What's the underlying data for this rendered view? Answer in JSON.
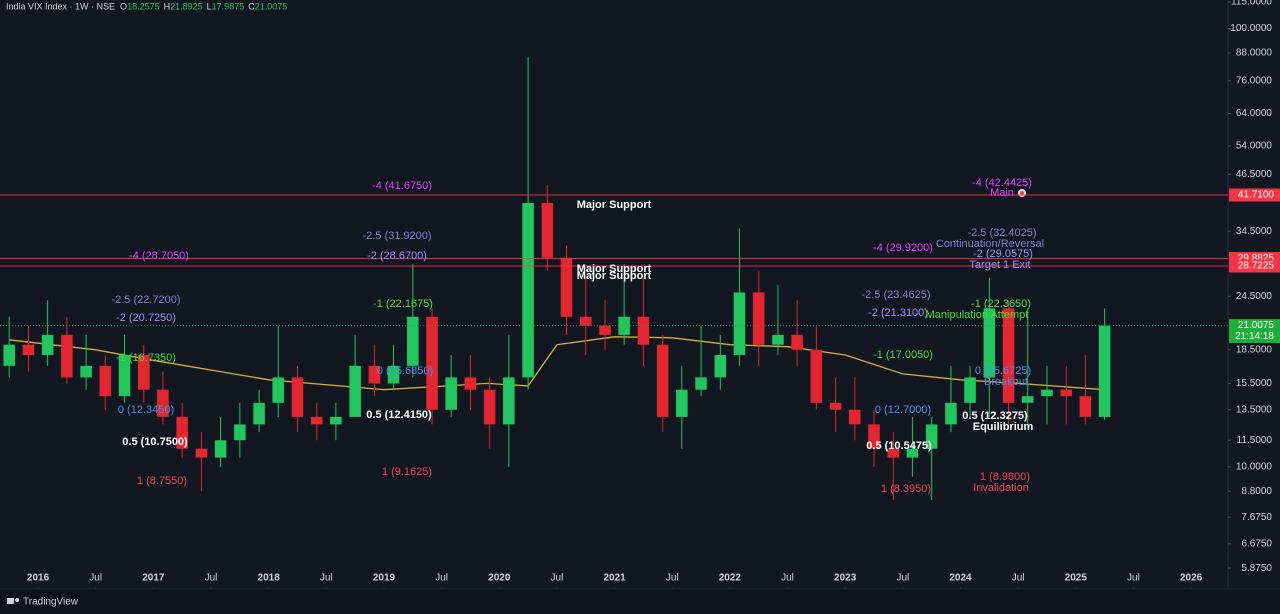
{
  "chart_data": {
    "type": "candlestick",
    "title": "India VIX Index · 1W · NSE",
    "ohlc": [
      {
        "label": "O",
        "value": 18.2575
      },
      {
        "label": "H",
        "value": 21.8925
      },
      {
        "label": "L",
        "value": 17.9875
      },
      {
        "label": "C",
        "value": 21.0075
      }
    ],
    "log_scale": true,
    "up_color": "#22c55e",
    "down_color": "#e3262f",
    "xlim": [
      2015.67,
      2026.32
    ],
    "xticks": [
      2016,
      {
        "value": 2016.5,
        "label": "Jul"
      },
      2017,
      {
        "value": 2017.5,
        "label": "Jul"
      },
      2018,
      {
        "value": 2018.5,
        "label": "Jul"
      },
      2019,
      {
        "value": 2019.5,
        "label": "Jul"
      },
      2020,
      {
        "value": 2020.5,
        "label": "Jul"
      },
      2021,
      {
        "value": 2021.5,
        "label": "Jul"
      },
      2022,
      {
        "value": 2022.5,
        "label": "Jul"
      },
      2023,
      {
        "value": 2023.5,
        "label": "Jul"
      },
      2024,
      {
        "value": 2024.5,
        "label": "Jul"
      },
      2025,
      {
        "value": 2025.5,
        "label": "Jul"
      },
      2026
    ],
    "ylim": [
      5.32,
      116.2
    ],
    "yticks": [
      {
        "value": 115,
        "label": "115.0000"
      },
      {
        "value": 100,
        "label": "100.0000"
      },
      {
        "value": 88,
        "label": "88.0000"
      },
      {
        "value": 76,
        "label": "76.0000"
      },
      {
        "value": 64,
        "label": "64.0000"
      },
      {
        "value": 54,
        "label": "54.0000"
      },
      {
        "value": 46.5,
        "label": "46.5000"
      },
      {
        "value": 34.5,
        "label": "34.5000"
      },
      {
        "value": 24.5,
        "label": "24.5000"
      },
      {
        "value": 18.5,
        "label": "18.5000"
      },
      {
        "value": 15.5,
        "label": "15.5000"
      },
      {
        "value": 13.5,
        "label": "13.5000"
      },
      {
        "value": 11.5,
        "label": "11.5000"
      },
      {
        "value": 10,
        "label": "10.0000"
      },
      {
        "value": 8.8,
        "label": "8.8000"
      },
      {
        "value": 7.675,
        "label": "7.6750"
      },
      {
        "value": 6.675,
        "label": "6.6750"
      },
      {
        "value": 5.875,
        "label": "5.8750"
      }
    ],
    "candles": {
      "x": [
        2015.75,
        2015.917,
        2016.083,
        2016.25,
        2016.417,
        2016.583,
        2016.75,
        2016.917,
        2017.083,
        2017.25,
        2017.417,
        2017.583,
        2017.75,
        2017.917,
        2018.083,
        2018.25,
        2018.417,
        2018.583,
        2018.75,
        2018.917,
        2019.083,
        2019.25,
        2019.417,
        2019.583,
        2019.75,
        2019.917,
        2020.083,
        2020.25,
        2020.417,
        2020.583,
        2020.75,
        2020.917,
        2021.083,
        2021.25,
        2021.417,
        2021.583,
        2021.75,
        2021.917,
        2022.083,
        2022.25,
        2022.417,
        2022.583,
        2022.75,
        2022.917,
        2023.083,
        2023.25,
        2023.417,
        2023.583,
        2023.75,
        2023.917,
        2024.083,
        2024.25,
        2024.417,
        2024.583,
        2024.75,
        2024.917,
        2025.083,
        2025.25
      ],
      "open": [
        17,
        19,
        18,
        20,
        16,
        17,
        14.5,
        18,
        15,
        13,
        11,
        10.5,
        11.5,
        12.5,
        14,
        16,
        13,
        12.5,
        13,
        17,
        15.5,
        17,
        22,
        13.5,
        16,
        15,
        12.5,
        16,
        40,
        30,
        22,
        21,
        20,
        22,
        19,
        13,
        15,
        16,
        18,
        25,
        19,
        20,
        18.5,
        14,
        13.5,
        12.5,
        11,
        10.5,
        11,
        12.5,
        14,
        16,
        23,
        14,
        14.5,
        15,
        14.5,
        13
      ],
      "high": [
        22,
        21,
        24,
        22,
        20,
        18,
        20,
        19,
        16.5,
        14,
        12,
        13,
        14,
        15,
        21,
        17,
        14,
        14,
        20,
        19,
        19,
        29,
        23,
        18,
        18,
        16,
        20,
        86,
        44,
        32,
        27,
        24,
        29,
        27,
        20,
        17,
        21,
        20,
        35,
        28,
        26,
        24,
        21,
        16,
        16,
        13.5,
        12,
        13,
        13,
        17,
        17,
        27,
        24,
        23,
        17,
        17,
        18,
        23
      ],
      "low": [
        16,
        16.5,
        17,
        15.5,
        15,
        13.5,
        14,
        14,
        12.5,
        10.5,
        8.8,
        10,
        10.5,
        12,
        13,
        12,
        11.5,
        11.5,
        13,
        14.5,
        15,
        16,
        12.5,
        13,
        13.5,
        11,
        10,
        15,
        28,
        20,
        18,
        18.5,
        19,
        17,
        12,
        11,
        14.5,
        15,
        17,
        17,
        18,
        17,
        13.5,
        12,
        11.5,
        10,
        8.4,
        9.5,
        8.4,
        12,
        13,
        13,
        12.5,
        12.5,
        12.5,
        12.5,
        12.5,
        12.8
      ],
      "close": [
        19,
        18,
        20,
        16,
        17,
        14.5,
        18,
        15,
        13,
        11,
        10.5,
        11.5,
        12.5,
        14,
        16,
        13,
        12.5,
        13,
        17,
        15.5,
        17,
        22,
        13.5,
        16,
        15,
        12.5,
        16,
        40,
        30,
        22,
        21,
        20,
        22,
        19,
        13,
        15,
        16,
        18,
        25,
        19,
        20,
        18.5,
        14,
        13.5,
        12.5,
        11,
        10.5,
        11,
        12.5,
        14,
        16,
        23,
        14,
        14.5,
        15,
        14.5,
        13,
        21.0075
      ]
    },
    "ma": {
      "color": "#d4b13a",
      "x": [
        2015.75,
        2016.5,
        2017,
        2018,
        2019,
        2019.9,
        2020.25,
        2020.5,
        2021,
        2021.5,
        2022,
        2022.5,
        2023,
        2023.5,
        2024,
        2024.5,
        2025.25
      ],
      "values": [
        19.5,
        18.5,
        17.5,
        15.8,
        15,
        15.5,
        15.3,
        19,
        19.8,
        19.7,
        19,
        18.8,
        18,
        16.3,
        15.8,
        15.5,
        15
      ]
    },
    "price_markers": [
      {
        "value": 41.71,
        "label": "41.7100",
        "color": "#f23645"
      },
      {
        "value": 29.8825,
        "label": "29.8825",
        "color": "#f23645"
      },
      {
        "value": 28.7225,
        "label": "28.7225",
        "color": "#f23645"
      },
      {
        "value": 21.0075,
        "label": "21.0075",
        "color": "#1fae3a",
        "countdown": "21:14:18"
      }
    ],
    "annotations": [
      {
        "text": "-4 (41.6750)",
        "color": "#e040fb"
      },
      {
        "text": "Major Support",
        "color": "#ffffff"
      },
      {
        "text": "-2.5 (31.9200)",
        "color": "#8c7bd0"
      },
      {
        "text": "-2 (28.6700)",
        "color": "#a78bfa"
      },
      {
        "text": "-4 (28.7050)",
        "color": "#e040fb"
      },
      {
        "text": "Major Support",
        "color": "#ffffff"
      },
      {
        "text": "Major Support",
        "color": "#ffffff"
      },
      {
        "text": "-1 (22.1675)",
        "color": "#4ade3a"
      },
      {
        "text": "-2.5 (22.7200)",
        "color": "#8c7bd0"
      },
      {
        "text": "-2 (20.7250)",
        "color": "#a78bfa"
      },
      {
        "text": "-1 (16.7350)",
        "color": "#4ade3a"
      },
      {
        "text": "0 (15.6850)",
        "color": "#4a8fe7"
      },
      {
        "text": "0 (12.3450)",
        "color": "#4a8fe7"
      },
      {
        "text": "0.5 (12.4150)",
        "color": "#ffffff"
      },
      {
        "text": "0.5 (10.7500)",
        "color": "#ffffff"
      },
      {
        "text": "1 (8.7550)",
        "color": "#f0444f"
      },
      {
        "text": "1 (9.1625)",
        "color": "#f0444f"
      },
      {
        "text": "-4 (42.4425)",
        "color": "#e040fb"
      },
      {
        "text": "Main",
        "color": "#e040fb"
      },
      {
        "text": "-2.5 (32.4025)",
        "color": "#8c7bd0"
      },
      {
        "text": "Continuation/Reversal",
        "color": "#8c7bd0"
      },
      {
        "text": "-4 (29.9200)",
        "color": "#e040fb"
      },
      {
        "text": "-2 (29.0575)",
        "color": "#a78bfa"
      },
      {
        "text": "Target 1 Exit",
        "color": "#a78bfa"
      },
      {
        "text": "-2.5 (23.4625)",
        "color": "#8c7bd0"
      },
      {
        "text": "-1 (22.3650)",
        "color": "#4ade3a"
      },
      {
        "text": "-2 (21.3100)",
        "color": "#a78bfa"
      },
      {
        "text": "Manipulation Attempt",
        "color": "#4ade3a"
      },
      {
        "text": "-1 (17.0050)",
        "color": "#4ade3a"
      },
      {
        "text": "0 (15.6725)",
        "color": "#4a8fe7"
      },
      {
        "text": "Breakout",
        "color": "#4a8fe7"
      },
      {
        "text": "0 (12.7000)",
        "color": "#4a8fe7"
      },
      {
        "text": "0.5 (12.3275)",
        "color": "#ffffff"
      },
      {
        "text": "Equilibrium",
        "color": "#ffffff"
      },
      {
        "text": "0.5 (10.5475)",
        "color": "#ffffff"
      },
      {
        "text": "1 (8.9800)",
        "color": "#f0444f"
      },
      {
        "text": "Invalidation",
        "color": "#f0444f"
      },
      {
        "text": "1 (8.3950)",
        "color": "#f0444f"
      }
    ],
    "brand": "TradingView"
  }
}
